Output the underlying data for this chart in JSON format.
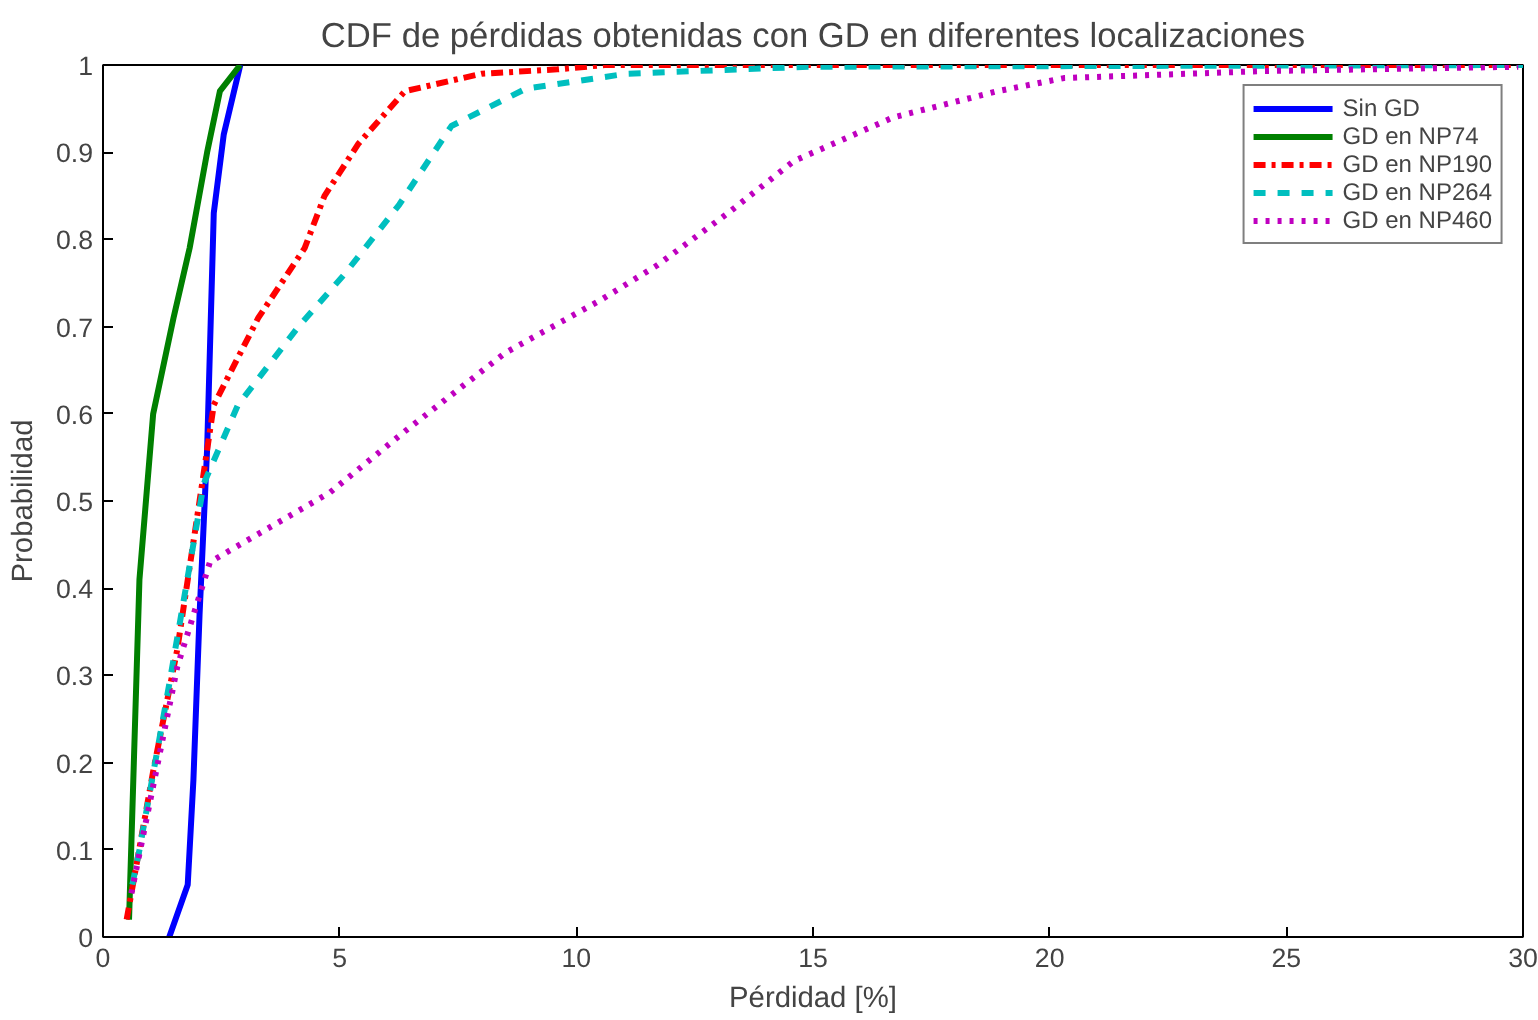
{
  "chart_data": {
    "type": "line",
    "title": "CDF de pérdidas obtenidas con GD en diferentes localizaciones",
    "xlabel": "Pérdidad [%]",
    "ylabel": "Probabilidad",
    "xlim": [
      0,
      30
    ],
    "ylim": [
      0,
      1
    ],
    "xticks": [
      0,
      5,
      10,
      15,
      20,
      25,
      30
    ],
    "yticks": [
      0,
      0.1,
      0.2,
      0.3,
      0.4,
      0.5,
      0.6,
      0.7,
      0.8,
      0.9,
      1
    ],
    "grid": false,
    "legend": "top right",
    "series": [
      {
        "name": "Sin GD",
        "color": "#0000ff",
        "line_style": "solid",
        "x": [
          1.4,
          1.79,
          1.91,
          2.04,
          2.2,
          2.34,
          2.55,
          2.9
        ],
        "values": [
          0,
          0.06,
          0.18,
          0.37,
          0.56,
          0.83,
          0.92,
          1.0
        ]
      },
      {
        "name": "GD en NP74",
        "color": "#008000",
        "line_style": "solid",
        "x": [
          0.55,
          0.77,
          1.06,
          1.49,
          1.83,
          2.2,
          2.47,
          2.9
        ],
        "values": [
          0.02,
          0.41,
          0.6,
          0.71,
          0.79,
          0.9,
          0.97,
          1.0
        ]
      },
      {
        "name": "GD en NP190",
        "color": "#ff0000",
        "line_style": "dashdot",
        "x": [
          0.5,
          1.06,
          1.57,
          2.04,
          2.34,
          3.28,
          4.26,
          4.68,
          5.4,
          6.38,
          8.0,
          9.6,
          10.6,
          30
        ],
        "values": [
          0.02,
          0.19,
          0.33,
          0.5,
          0.61,
          0.71,
          0.79,
          0.85,
          0.91,
          0.97,
          0.99,
          0.995,
          1.0,
          1.0
        ]
      },
      {
        "name": "GD en NP264",
        "color": "#00bfbf",
        "line_style": "dashed",
        "x": [
          0.62,
          0.77,
          1.4,
          2.13,
          2.85,
          4.13,
          5.1,
          6.26,
          7.36,
          8.94,
          11.06,
          14.9,
          30
        ],
        "values": [
          0.06,
          0.1,
          0.29,
          0.52,
          0.61,
          0.7,
          0.76,
          0.84,
          0.93,
          0.973,
          0.99,
          0.998,
          1.0
        ]
      },
      {
        "name": "GD en NP460",
        "color": "#bf00bf",
        "line_style": "dotted",
        "x": [
          0.6,
          1.57,
          2.26,
          3.53,
          4.8,
          6.38,
          8.5,
          10.5,
          11.7,
          13.2,
          14.6,
          16.7,
          18.9,
          20.3,
          24.5,
          29.9
        ],
        "values": [
          0.05,
          0.31,
          0.43,
          0.47,
          0.51,
          0.58,
          0.67,
          0.73,
          0.77,
          0.83,
          0.89,
          0.94,
          0.97,
          0.985,
          0.993,
          0.998
        ]
      }
    ]
  }
}
